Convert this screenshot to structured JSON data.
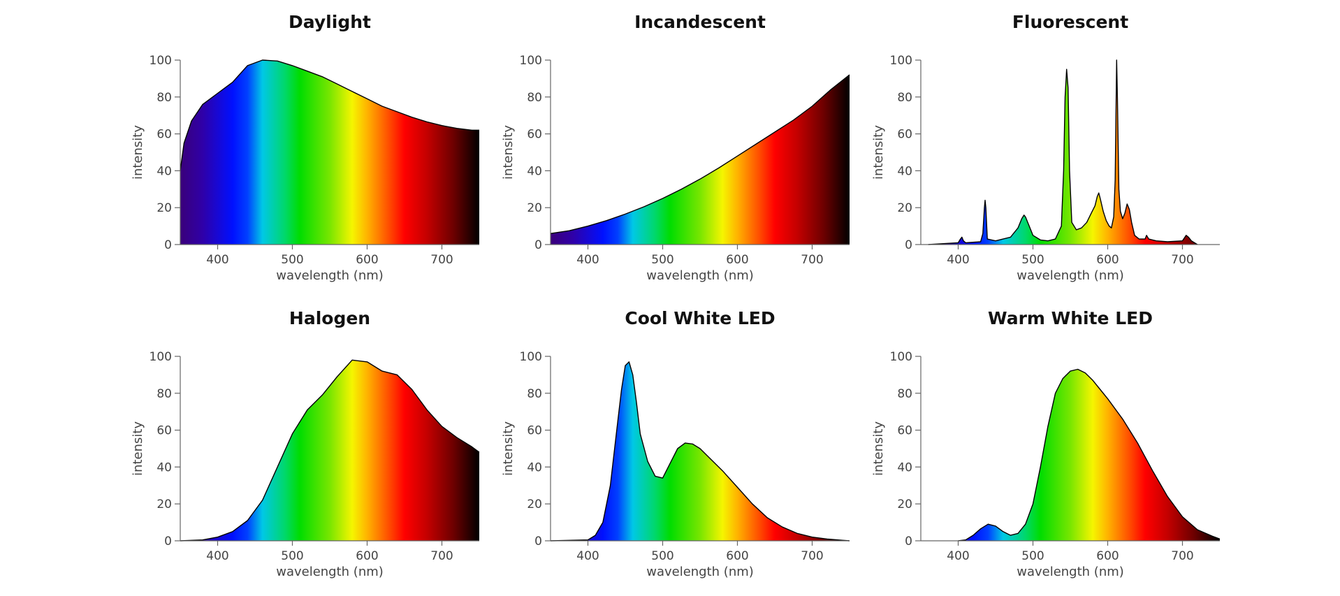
{
  "colors": {
    "spectrum": [
      "#3a007a",
      "#2f00a8",
      "#0010ff",
      "#0040ff",
      "#00c8e6",
      "#00d86a",
      "#00dd00",
      "#78e600",
      "#f5f500",
      "#ffb300",
      "#ff4a00",
      "#ff0000",
      "#c40000",
      "#6e0000",
      "#000000"
    ],
    "spectrum_stops_nm": [
      350,
      380,
      420,
      440,
      460,
      490,
      510,
      550,
      580,
      600,
      630,
      650,
      680,
      715,
      750
    ]
  },
  "chart_data": [
    {
      "type": "area",
      "title": "Daylight",
      "xlabel": "wavelength (nm)",
      "ylabel": "intensity",
      "xlim": [
        350,
        750
      ],
      "ylim": [
        0,
        100
      ],
      "xticks": [
        400,
        500,
        600,
        700
      ],
      "yticks": [
        0,
        20,
        40,
        60,
        80,
        100
      ],
      "x": [
        350,
        355,
        365,
        380,
        400,
        420,
        440,
        460,
        480,
        500,
        520,
        540,
        560,
        580,
        600,
        620,
        640,
        660,
        680,
        700,
        720,
        740,
        750
      ],
      "y": [
        40,
        55,
        67,
        76,
        82,
        88,
        97,
        100,
        99.5,
        97,
        94,
        91,
        87,
        83,
        79,
        75,
        72,
        69,
        66.5,
        64.5,
        63,
        62,
        62
      ]
    },
    {
      "type": "area",
      "title": "Incandescent",
      "xlabel": "wavelength (nm)",
      "ylabel": "intensity",
      "xlim": [
        350,
        750
      ],
      "ylim": [
        0,
        100
      ],
      "xticks": [
        400,
        500,
        600,
        700
      ],
      "yticks": [
        0,
        20,
        40,
        60,
        80,
        100
      ],
      "x": [
        350,
        375,
        400,
        425,
        450,
        475,
        500,
        525,
        550,
        575,
        600,
        625,
        650,
        675,
        700,
        725,
        750
      ],
      "y": [
        6,
        7.5,
        10,
        13,
        16.5,
        20.5,
        25,
        30,
        35.5,
        41.5,
        48,
        54.5,
        61,
        67.5,
        75,
        84,
        92
      ]
    },
    {
      "type": "area",
      "title": "Fluorescent",
      "xlabel": "wavelength (nm)",
      "ylabel": "intensity",
      "xlim": [
        350,
        750
      ],
      "ylim": [
        0,
        100
      ],
      "xticks": [
        400,
        500,
        600,
        700
      ],
      "yticks": [
        0,
        20,
        40,
        60,
        80,
        100
      ],
      "x": [
        360,
        380,
        400,
        403,
        405,
        407,
        410,
        430,
        433,
        435,
        436,
        437,
        439,
        450,
        470,
        480,
        485,
        488,
        490,
        495,
        500,
        510,
        520,
        530,
        538,
        541,
        543,
        545,
        547,
        549,
        552,
        558,
        565,
        572,
        578,
        583,
        586,
        588,
        590,
        594,
        598,
        602,
        605,
        608,
        610,
        611,
        612,
        613,
        615,
        617,
        620,
        623,
        626,
        629,
        632,
        636,
        642,
        650,
        652,
        655,
        665,
        680,
        700,
        705,
        708,
        712,
        720
      ],
      "y": [
        0,
        0.5,
        1,
        3,
        4,
        2,
        1,
        1.5,
        6,
        20,
        24,
        20,
        3,
        2,
        4,
        9,
        14,
        16,
        15,
        10,
        5,
        2.5,
        2,
        3,
        10,
        40,
        80,
        95,
        85,
        40,
        12,
        8,
        9,
        12,
        17,
        21,
        26,
        28,
        25,
        18,
        13,
        10,
        9,
        15,
        35,
        70,
        100,
        80,
        30,
        18,
        14,
        17,
        22,
        19,
        12,
        5,
        3,
        3,
        5,
        3,
        2,
        1.5,
        2,
        5,
        4,
        2,
        0
      ]
    },
    {
      "type": "area",
      "title": "Halogen",
      "xlabel": "wavelength (nm)",
      "ylabel": "intensity",
      "xlim": [
        350,
        750
      ],
      "ylim": [
        0,
        100
      ],
      "xticks": [
        400,
        500,
        600,
        700
      ],
      "yticks": [
        0,
        20,
        40,
        60,
        80,
        100
      ],
      "x": [
        350,
        380,
        400,
        420,
        440,
        460,
        480,
        500,
        520,
        540,
        560,
        580,
        600,
        620,
        640,
        660,
        680,
        700,
        720,
        740,
        750
      ],
      "y": [
        0,
        0.5,
        2,
        5,
        11,
        22,
        40,
        58,
        71,
        79,
        89,
        98,
        97,
        92,
        90,
        82,
        71,
        62,
        56,
        51,
        48
      ]
    },
    {
      "type": "area",
      "title": "Cool White LED",
      "xlabel": "wavelength (nm)",
      "ylabel": "intensity",
      "xlim": [
        350,
        750
      ],
      "ylim": [
        0,
        100
      ],
      "xticks": [
        400,
        500,
        600,
        700
      ],
      "yticks": [
        0,
        20,
        40,
        60,
        80,
        100
      ],
      "x": [
        350,
        400,
        410,
        420,
        430,
        440,
        445,
        450,
        455,
        460,
        465,
        470,
        480,
        490,
        500,
        510,
        520,
        530,
        540,
        550,
        560,
        580,
        600,
        620,
        640,
        660,
        680,
        700,
        720,
        740,
        750
      ],
      "y": [
        0,
        0.5,
        3,
        10,
        30,
        65,
        82,
        95,
        97,
        90,
        75,
        58,
        43,
        35,
        34,
        42,
        50,
        53,
        52.5,
        50,
        46,
        38,
        29,
        20,
        12.5,
        7.5,
        4,
        2,
        1,
        0.3,
        0
      ]
    },
    {
      "type": "area",
      "title": "Warm White LED",
      "xlabel": "wavelength (nm)",
      "ylabel": "intensity",
      "xlim": [
        350,
        750
      ],
      "ylim": [
        0,
        100
      ],
      "xticks": [
        400,
        500,
        600,
        700
      ],
      "yticks": [
        0,
        20,
        40,
        60,
        80,
        100
      ],
      "x": [
        400,
        410,
        420,
        430,
        440,
        450,
        460,
        470,
        480,
        490,
        500,
        510,
        520,
        530,
        540,
        550,
        560,
        570,
        580,
        590,
        600,
        620,
        640,
        660,
        680,
        700,
        720,
        740,
        750
      ],
      "y": [
        0,
        0.5,
        3,
        6.5,
        9,
        8,
        5,
        3,
        4,
        9,
        20,
        40,
        62,
        80,
        88,
        92,
        93,
        91,
        87,
        82,
        77,
        66,
        53,
        38,
        24,
        13,
        6,
        2.5,
        1
      ]
    }
  ]
}
